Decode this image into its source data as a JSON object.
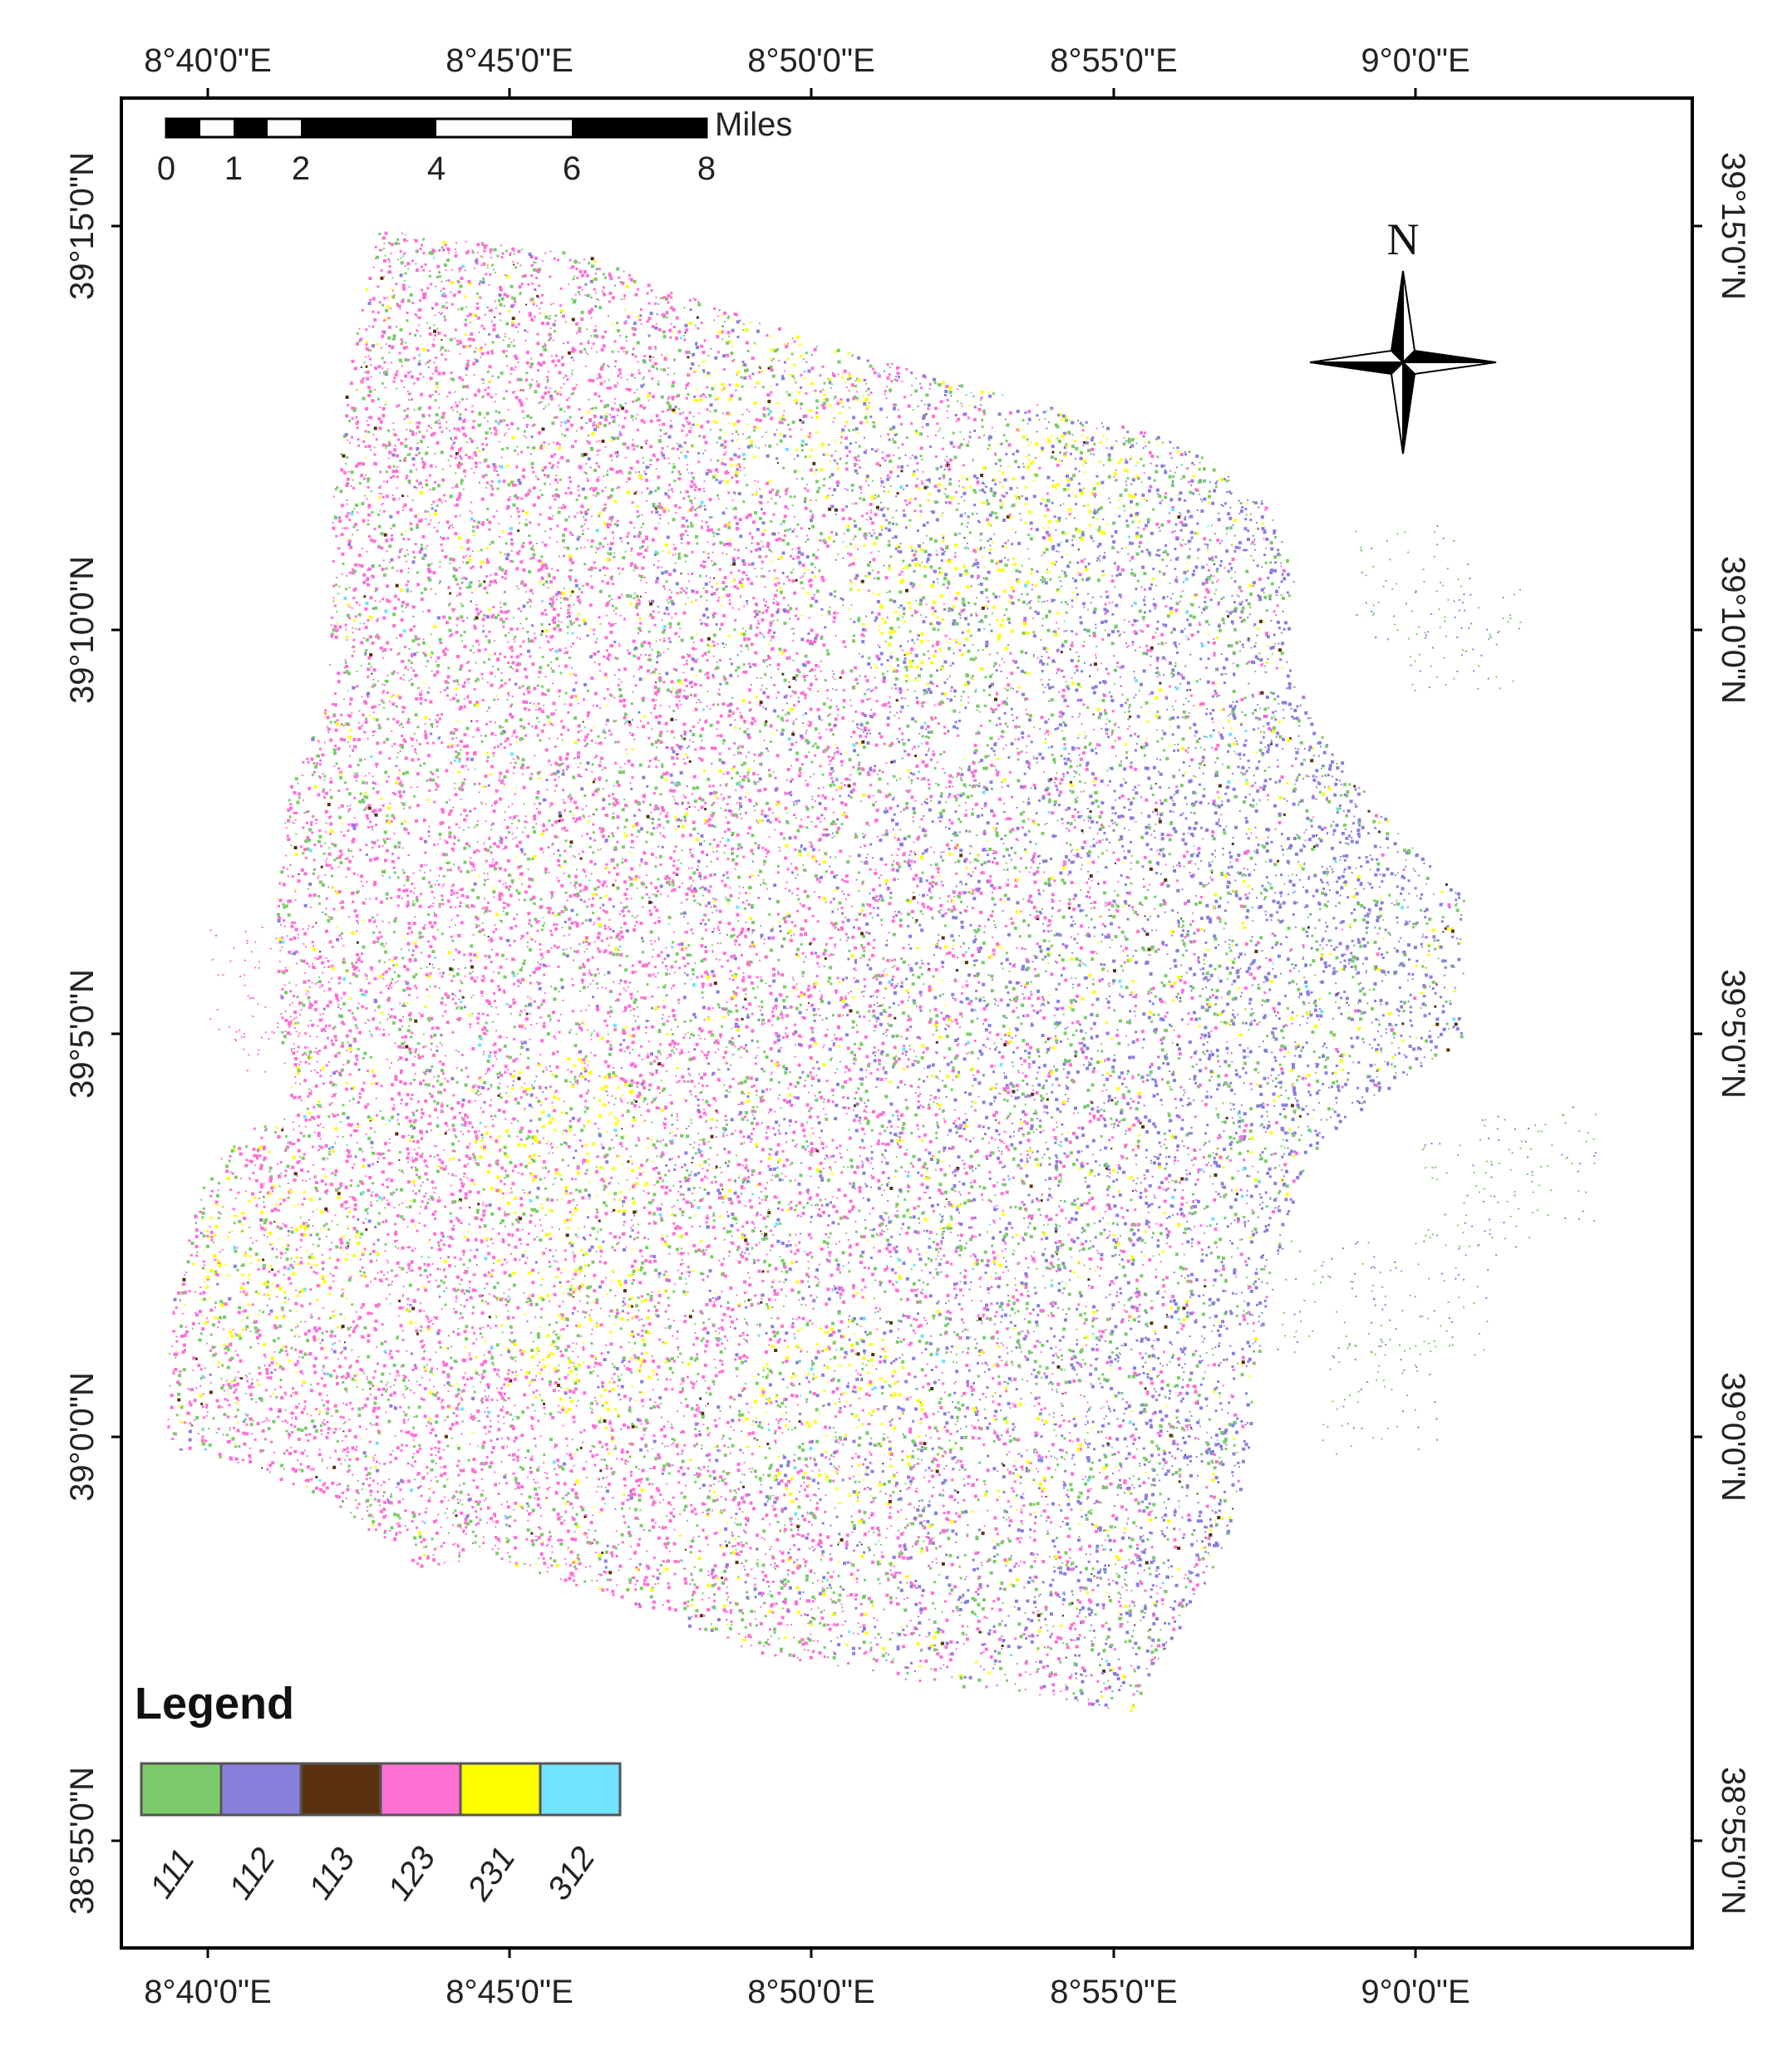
{
  "map": {
    "lon_ticks": [
      "8°40'0\"E",
      "8°45'0\"E",
      "8°50'0\"E",
      "8°55'0\"E",
      "9°0'0\"E"
    ],
    "lat_ticks": [
      "39°15'0\"N",
      "39°10'0\"N",
      "39°5'0\"N",
      "39°0'0\"N",
      "38°55'0\"N"
    ],
    "north_arrow": {
      "label": "N",
      "icon": "compass-rose-icon"
    },
    "scale_bar": {
      "unit": "Miles",
      "labels": [
        "0",
        "1",
        "2",
        "4",
        "6",
        "8"
      ]
    },
    "legend": {
      "title": "Legend",
      "items": [
        {
          "code": "111",
          "color": "#7ccb6a"
        },
        {
          "code": "112",
          "color": "#8a7fdc"
        },
        {
          "code": "113",
          "color": "#5a3212"
        },
        {
          "code": "123",
          "color": "#ff6fd4"
        },
        {
          "code": "231",
          "color": "#ffff00"
        },
        {
          "code": "312",
          "color": "#6fe3ff"
        }
      ]
    },
    "frame_color": "#000000",
    "background_color": "#ffffff"
  }
}
